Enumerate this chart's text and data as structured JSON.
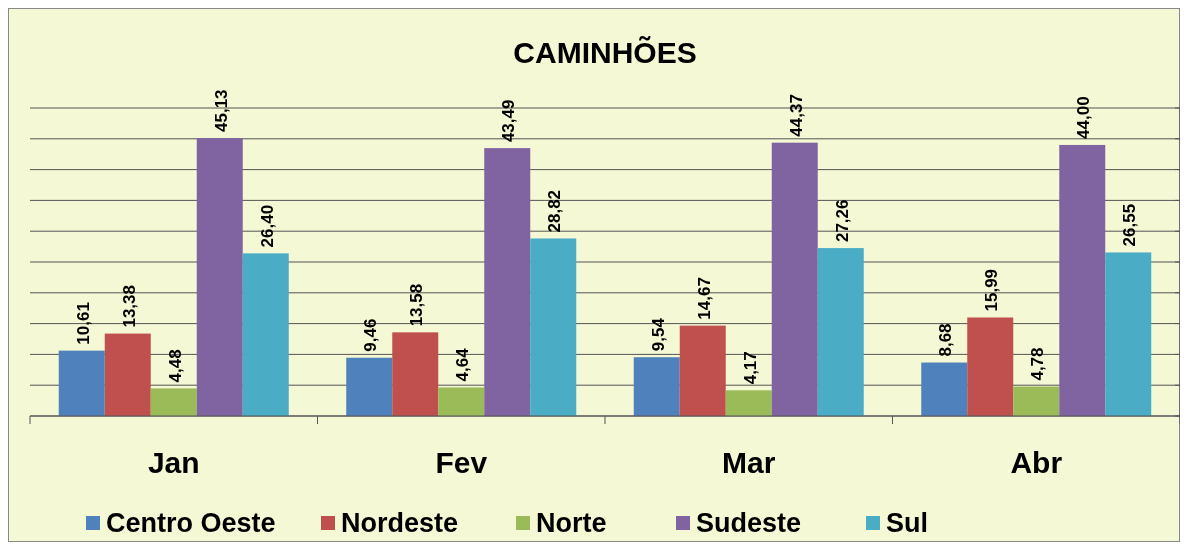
{
  "chart_data": {
    "type": "bar",
    "title": "CAMINHÕES",
    "categories": [
      "Jan",
      "Fev",
      "Mar",
      "Abr"
    ],
    "series": [
      {
        "name": "Centro Oeste",
        "color": "#4f81bd",
        "values": [
          10.61,
          9.46,
          9.54,
          8.68
        ],
        "value_labels": [
          "10,61",
          "9,46",
          "9,54",
          "8,68"
        ]
      },
      {
        "name": "Nordeste",
        "color": "#c0504d",
        "values": [
          13.38,
          13.58,
          14.67,
          15.99
        ],
        "value_labels": [
          "13,38",
          "13,58",
          "14,67",
          "15,99"
        ]
      },
      {
        "name": "Norte",
        "color": "#9bbb59",
        "values": [
          4.48,
          4.64,
          4.17,
          4.78
        ],
        "value_labels": [
          "4,48",
          "4,64",
          "4,17",
          "4,78"
        ]
      },
      {
        "name": "Sudeste",
        "color": "#8064a2",
        "values": [
          45.13,
          43.49,
          44.37,
          44.0
        ],
        "value_labels": [
          "45,13",
          "43,49",
          "44,37",
          "44,00"
        ]
      },
      {
        "name": "Sul",
        "color": "#4bacc6",
        "values": [
          26.4,
          28.82,
          27.26,
          26.55
        ],
        "value_labels": [
          "26,40",
          "28,82",
          "27,26",
          "26,55"
        ]
      }
    ],
    "ylim": [
      0,
      50
    ],
    "yticks": [
      {
        "value": 0,
        "label": null
      },
      {
        "value": 5,
        "label": null
      },
      {
        "value": 10,
        "label": null
      },
      {
        "value": 15,
        "label": null
      },
      {
        "value": 20,
        "label": null
      },
      {
        "value": 25,
        "label": null
      },
      {
        "value": 30,
        "label": null
      },
      {
        "value": 35,
        "label": null
      },
      {
        "value": 40,
        "label": null
      },
      {
        "value": 45,
        "label": null
      },
      {
        "value": 50,
        "label": null
      }
    ],
    "tick_labels": "x",
    "grid": "y",
    "legend": "bottom"
  }
}
